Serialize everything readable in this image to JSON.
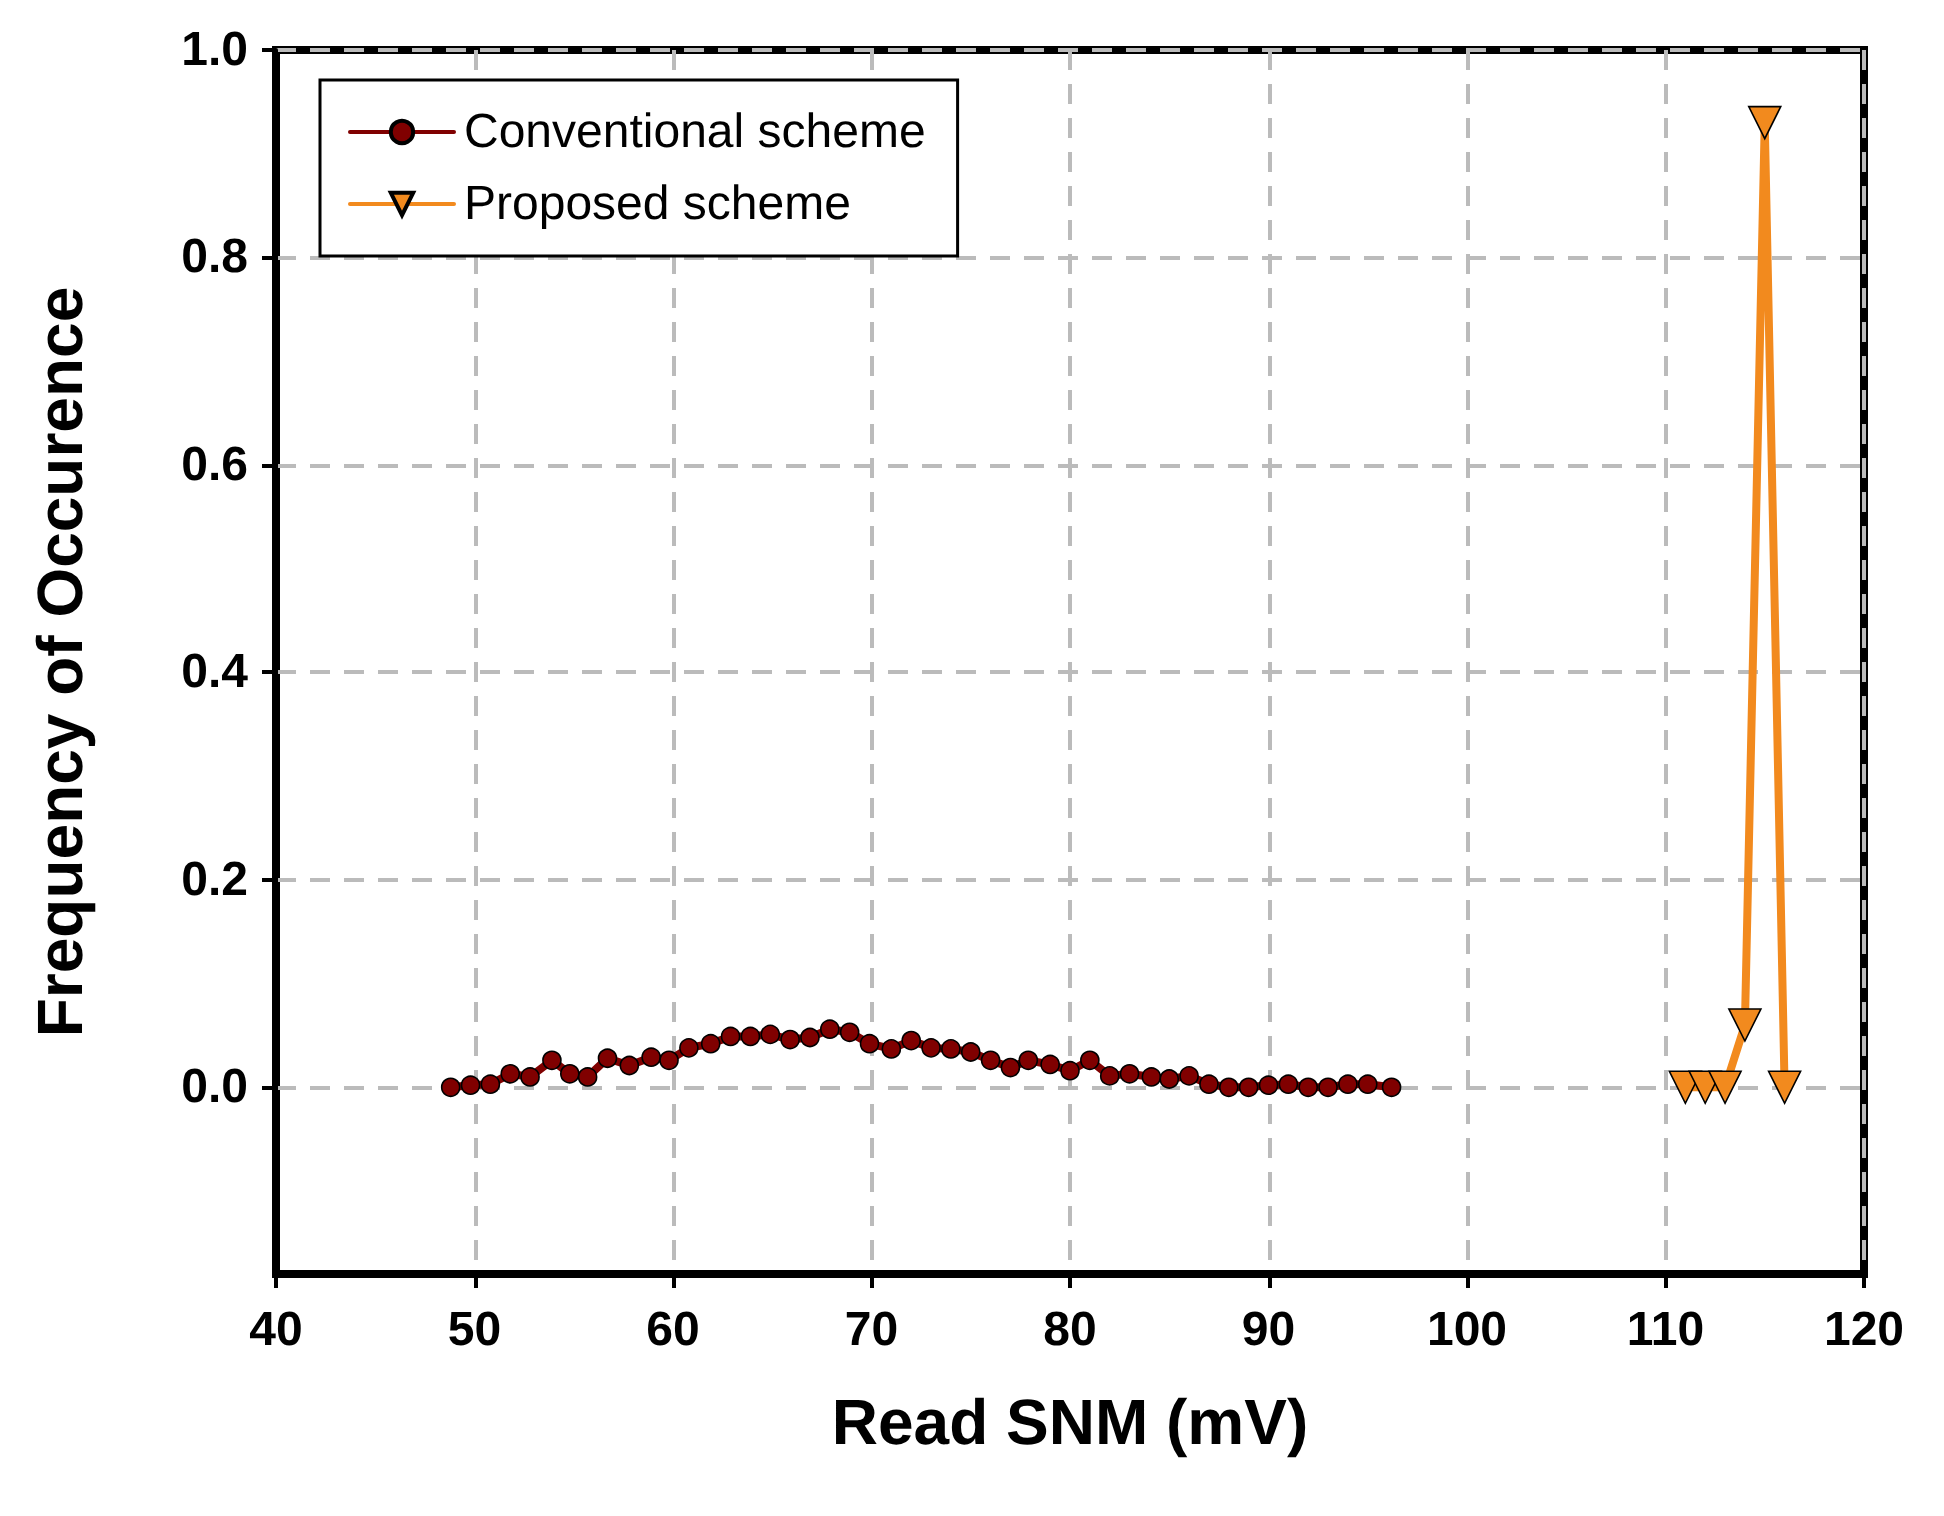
{
  "chart_data": {
    "type": "line",
    "xlabel": "Read SNM (mV)",
    "ylabel": "Frequency of Occurence",
    "xlim": [
      40,
      120
    ],
    "xticks": [
      40,
      50,
      60,
      70,
      80,
      90,
      100,
      110,
      120
    ],
    "ylim": [
      -0.18,
      1
    ],
    "yticks": [
      {
        "value": 0,
        "label": "0.0"
      },
      {
        "value": 0.2,
        "label": "0.2"
      },
      {
        "value": 0.4,
        "label": "0.4"
      },
      {
        "value": 0.6,
        "label": "0.6"
      },
      {
        "value": 0.8,
        "label": "0.8"
      },
      {
        "value": 1,
        "label": "1.0"
      }
    ],
    "grid": true,
    "legend": "top left",
    "line_style": "solid",
    "series": [
      {
        "name": "Conventional scheme",
        "color": "#800000",
        "marker": "circle",
        "x": [
          48.8,
          49.8,
          50.8,
          51.8,
          52.8,
          53.9,
          54.8,
          55.7,
          56.7,
          57.8,
          58.9,
          59.8,
          60.8,
          61.9,
          62.9,
          63.9,
          64.9,
          65.9,
          66.9,
          67.9,
          68.9,
          69.9,
          71.0,
          72.0,
          73.0,
          74.0,
          75.0,
          76.0,
          77.0,
          77.9,
          79.0,
          80.0,
          81.0,
          82.0,
          83.0,
          84.1,
          85.0,
          86.0,
          87.0,
          88.0,
          89.0,
          90.0,
          91.0,
          92.0,
          93.0,
          94.0,
          95.0,
          96.2
        ],
        "values": [
          0,
          0.002,
          0.003,
          0.013,
          0.01,
          0.026,
          0.013,
          0.01,
          0.028,
          0.021,
          0.029,
          0.026,
          0.038,
          0.042,
          0.049,
          0.049,
          0.051,
          0.046,
          0.048,
          0.056,
          0.053,
          0.042,
          0.037,
          0.045,
          0.038,
          0.037,
          0.034,
          0.026,
          0.019,
          0.026,
          0.022,
          0.016,
          0.026,
          0.011,
          0.013,
          0.01,
          0.008,
          0.011,
          0.003,
          0,
          0,
          0.002,
          0.003,
          0,
          0,
          0.003,
          0.003,
          0
        ]
      },
      {
        "name": "Proposed scheme",
        "color": "#f28a1e",
        "marker": "triangle",
        "x": [
          111,
          112,
          113,
          114,
          115,
          116
        ],
        "values": [
          0,
          0,
          0,
          0.06,
          0.93,
          0
        ]
      }
    ]
  }
}
